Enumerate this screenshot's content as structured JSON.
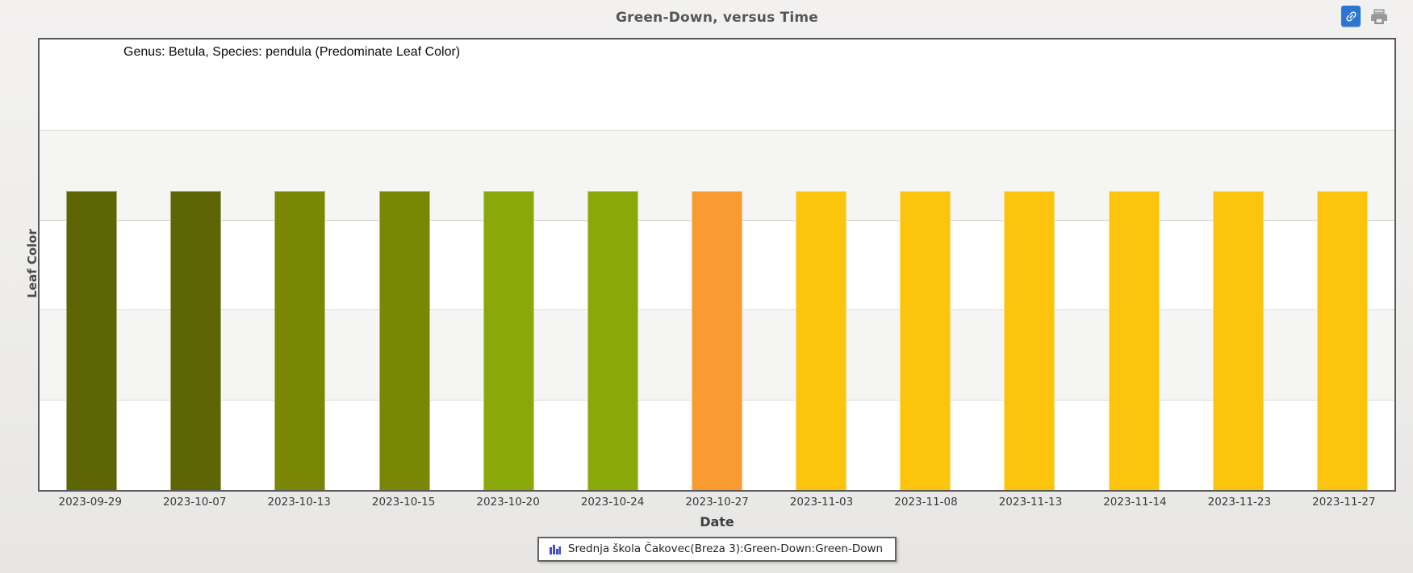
{
  "header": {
    "title": "Green-Down, versus Time",
    "link_button_tooltip": "link-icon",
    "print_button_tooltip": "print-icon"
  },
  "chart": {
    "subtitle": "Genus: Betula, Species: pendula (Predominate Leaf Color)",
    "x_axis_title": "Date",
    "y_axis_title": "Leaf Color"
  },
  "legend": {
    "label": "Srednja škola Čakovec(Breza 3):Green-Down:Green-Down",
    "icon": "bar-chart-icon",
    "icon_color": "#3f51c1"
  },
  "colors": {
    "link_button_bg": "#2a76d2",
    "panel_border": "#58585a",
    "band_gray": "#f5f5f4",
    "gridline": "#d8d8d7"
  },
  "chart_data": {
    "type": "bar",
    "title": "Green-Down, versus Time",
    "subtitle": "Genus: Betula, Species: pendula (Predominate Leaf Color)",
    "xlabel": "Date",
    "ylabel": "Leaf Color",
    "categories": [
      "2023-09-29",
      "2023-10-07",
      "2023-10-13",
      "2023-10-15",
      "2023-10-20",
      "2023-10-24",
      "2023-10-27",
      "2023-11-03",
      "2023-11-08",
      "2023-11-13",
      "2023-11-14",
      "2023-11-23",
      "2023-11-27"
    ],
    "series": [
      {
        "name": "Srednja škola Čakovec(Breza 3):Green-Down:Green-Down",
        "values": [
          1,
          1,
          1,
          1,
          1,
          1,
          1,
          1,
          1,
          1,
          1,
          1,
          1
        ],
        "bar_colors": [
          "#5e6504",
          "#5e6504",
          "#798704",
          "#798704",
          "#8aa80a",
          "#8aa80a",
          "#f99b31",
          "#fcc40d",
          "#fcc40d",
          "#fcc40d",
          "#fcc40d",
          "#fcc40d",
          "#fcc40d"
        ]
      }
    ],
    "bar_height_fraction": 0.664,
    "encoding_note": "All bars equal height; leaf color category is encoded by bar fill color",
    "grid": "horizontal alternating bands, 5 rows",
    "y_tick_labels": [],
    "legend_position": "bottom"
  }
}
